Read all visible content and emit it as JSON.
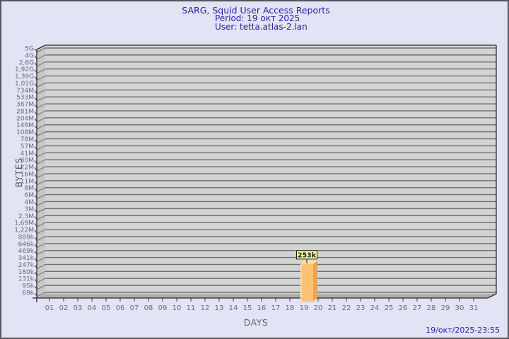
{
  "header": {
    "title": "SARG, Squid User Access Reports",
    "period": "Period: 19 окт 2025",
    "user": "User: tetta.atlas-2.lan"
  },
  "footer": {
    "generated": "19/окт/2025-23:55"
  },
  "chart_data": {
    "type": "bar",
    "title": "SARG, Squid User Access Reports",
    "subtitle_lines": [
      "Period: 19 окт 2025",
      "User: tetta.atlas-2.lan"
    ],
    "xlabel": "DAYS",
    "ylabel": "BYTES",
    "y_scale": "logarithmic",
    "y_range_bytes": [
      69000,
      5000000000
    ],
    "y_tick_labels": [
      "5G",
      "4G",
      "2,6G",
      "1,92G",
      "1,39G",
      "1,01G",
      "734M",
      "533M",
      "387M",
      "281M",
      "204M",
      "148M",
      "108M",
      "78M",
      "57M",
      "41M",
      "30M",
      "22M",
      "16M",
      "11M",
      "8M",
      "6M",
      "4M",
      "3M",
      "2,3M",
      "1,69M",
      "1,22M",
      "889k",
      "646k",
      "469k",
      "341k",
      "247k",
      "180k",
      "131k",
      "95k",
      "69k"
    ],
    "x_tick_labels": [
      "01",
      "02",
      "03",
      "04",
      "05",
      "06",
      "07",
      "08",
      "09",
      "10",
      "11",
      "12",
      "13",
      "14",
      "15",
      "16",
      "17",
      "18",
      "19",
      "20",
      "21",
      "22",
      "23",
      "24",
      "25",
      "26",
      "27",
      "28",
      "29",
      "30",
      "31"
    ],
    "bars": [
      {
        "day": "19",
        "label": "253k",
        "bytes": 253000
      }
    ],
    "grid": "horizontal",
    "legend": "none"
  },
  "colors": {
    "page_bg": "#E3E3F6",
    "border": "#55555E",
    "title_text": "#2323A5",
    "axis_text": "#6A6A74",
    "plot_bg": "#D3D3D3",
    "grid_line": "#707070",
    "frame_line": "#2B2B2B",
    "wall": "#C7C7C7",
    "floor": "#AFAFAF",
    "bar_front": "#FBC271",
    "bar_top": "#FDE0A4",
    "bar_side": "#EDA44C",
    "bar_highlight": "#FDE2A8",
    "value_label_bg": "#FFFF9E",
    "value_label_border": "#1A1A1A",
    "value_label_text": "#1A1A1A"
  }
}
